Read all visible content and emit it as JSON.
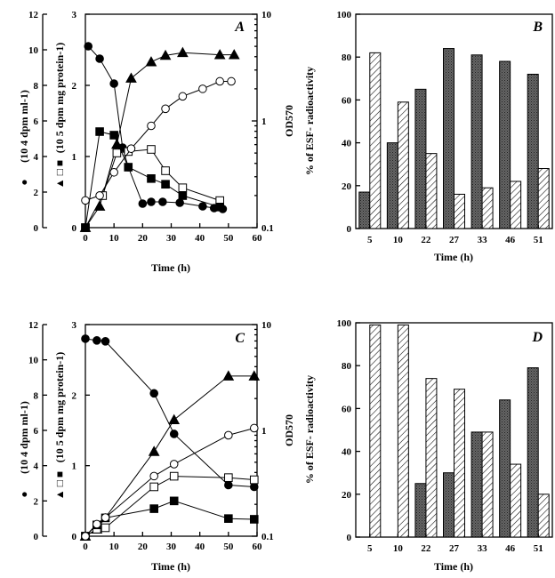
{
  "colors": {
    "ink": "#000000",
    "dark_bar": "#555555",
    "background": "#ffffff"
  },
  "chart_data": [
    {
      "id": "A",
      "type": "line",
      "panel_label": "A",
      "xlabel": "Time (h)",
      "xlim": [
        0,
        60
      ],
      "xticks": [
        "0",
        "10",
        "20",
        "30",
        "40",
        "50",
        "60"
      ],
      "axes": {
        "dpm": {
          "label": "(10 4 dpm ml-1)",
          "symbols": "●",
          "ylim": [
            0,
            12
          ],
          "ticks": [
            "0",
            "2",
            "4",
            "6",
            "8",
            "10",
            "12"
          ]
        },
        "spec": {
          "label": "(10 5 dpm mg protein-1)",
          "symbols": "▲ □ ■",
          "ylim": [
            0,
            3
          ],
          "ticks": [
            "0",
            "1",
            "2",
            "3"
          ]
        },
        "od": {
          "label": "OD570",
          "scale": "log",
          "ylim": [
            0.1,
            10
          ],
          "ticks": [
            "0.1",
            "1",
            "10"
          ]
        }
      },
      "series": [
        {
          "name": "filled circle",
          "marker": "circle",
          "filled": true,
          "axis": "dpm",
          "x": [
            1,
            5,
            10,
            13,
            15,
            20,
            23,
            27,
            33,
            41,
            45,
            48
          ],
          "y": [
            10.2,
            9.5,
            8.1,
            4.5,
            3.4,
            1.35,
            1.45,
            1.45,
            1.4,
            1.2,
            1.1,
            1.05
          ]
        },
        {
          "name": "filled triangle",
          "marker": "triangle",
          "filled": true,
          "axis": "spec",
          "x": [
            0,
            5,
            11,
            16,
            23,
            28,
            34,
            47,
            52
          ],
          "y": [
            0,
            0.3,
            1.17,
            2.1,
            2.33,
            2.42,
            2.46,
            2.43,
            2.43
          ]
        },
        {
          "name": "open square",
          "marker": "square",
          "filled": false,
          "axis": "spec",
          "x": [
            0,
            6,
            11,
            15,
            23,
            28,
            34,
            47
          ],
          "y": [
            0,
            0.45,
            1.05,
            1.07,
            1.1,
            0.8,
            0.56,
            0.38
          ]
        },
        {
          "name": "filled square",
          "marker": "square",
          "filled": true,
          "axis": "spec",
          "x": [
            0,
            5,
            10,
            15,
            23,
            28,
            34,
            47
          ],
          "y": [
            0,
            1.35,
            1.3,
            0.85,
            0.69,
            0.61,
            0.45,
            0.29
          ]
        },
        {
          "name": "open circle",
          "marker": "circle",
          "filled": false,
          "axis": "od",
          "x": [
            0,
            5,
            10,
            16,
            23,
            28,
            34,
            41,
            47,
            51
          ],
          "y": [
            0.18,
            0.2,
            0.33,
            0.55,
            0.9,
            1.3,
            1.7,
            2.0,
            2.35,
            2.35
          ]
        }
      ]
    },
    {
      "id": "B",
      "type": "bar",
      "panel_label": "B",
      "xlabel": "Time (h)",
      "ylabel": "% of ESF- radioactivity",
      "ylim": [
        0,
        100
      ],
      "yticks": [
        "0",
        "20",
        "40",
        "60",
        "80",
        "100"
      ],
      "categories": [
        "5",
        "10",
        "22",
        "27",
        "33",
        "46",
        "51"
      ],
      "series": [
        {
          "name": "dark",
          "pattern": "solid-dark",
          "values": [
            17,
            40,
            65,
            84,
            81,
            78,
            72
          ]
        },
        {
          "name": "hatched",
          "pattern": "hatched",
          "values": [
            82,
            59,
            35,
            16,
            19,
            22,
            28
          ]
        }
      ]
    },
    {
      "id": "C",
      "type": "line",
      "panel_label": "C",
      "xlabel": "Time (h)",
      "xlim": [
        0,
        60
      ],
      "xticks": [
        "0",
        "10",
        "20",
        "30",
        "40",
        "50",
        "60"
      ],
      "axes": {
        "dpm": {
          "label": "(10 4 dpm ml-1)",
          "symbols": "●",
          "ylim": [
            0,
            12
          ],
          "ticks": [
            "0",
            "2",
            "4",
            "6",
            "8",
            "10",
            "12"
          ]
        },
        "spec": {
          "label": "(10 5 dpm mg protein-1)",
          "symbols": "▲ □ ■",
          "ylim": [
            0,
            3
          ],
          "ticks": [
            "0",
            "1",
            "2",
            "3"
          ]
        },
        "od": {
          "label": "OD570",
          "scale": "log",
          "ylim": [
            0.1,
            10
          ],
          "ticks": [
            "0.1",
            "1",
            "10"
          ]
        }
      },
      "series": [
        {
          "name": "filled circle",
          "marker": "circle",
          "filled": true,
          "axis": "dpm",
          "x": [
            0,
            4,
            7,
            24,
            31,
            50,
            59
          ],
          "y": [
            11.2,
            11.1,
            11.05,
            8.1,
            5.8,
            2.9,
            2.8
          ]
        },
        {
          "name": "filled triangle",
          "marker": "triangle",
          "filled": true,
          "axis": "spec",
          "x": [
            0,
            4,
            24,
            31,
            50,
            59
          ],
          "y": [
            0,
            0.1,
            1.2,
            1.65,
            2.27,
            2.27
          ]
        },
        {
          "name": "open square",
          "marker": "square",
          "filled": false,
          "axis": "spec",
          "x": [
            0,
            4,
            7,
            24,
            31,
            50,
            59
          ],
          "y": [
            0,
            0.1,
            0.12,
            0.7,
            0.85,
            0.83,
            0.8
          ]
        },
        {
          "name": "filled square",
          "marker": "square",
          "filled": true,
          "axis": "spec",
          "x": [
            0,
            4,
            7,
            24,
            31,
            50,
            59
          ],
          "y": [
            0,
            0.16,
            0.26,
            0.39,
            0.5,
            0.25,
            0.24
          ]
        },
        {
          "name": "open circle",
          "marker": "circle",
          "filled": false,
          "axis": "od",
          "x": [
            0,
            4,
            7,
            24,
            31,
            50,
            59
          ],
          "y": [
            0.1,
            0.13,
            0.15,
            0.37,
            0.48,
            0.9,
            1.05
          ]
        }
      ]
    },
    {
      "id": "D",
      "type": "bar",
      "panel_label": "D",
      "xlabel": "Time (h)",
      "ylabel": "% of ESF- radioactivity",
      "ylim": [
        0,
        100
      ],
      "yticks": [
        "0",
        "20",
        "40",
        "60",
        "80",
        "100"
      ],
      "categories": [
        "5",
        "10",
        "22",
        "27",
        "33",
        "46",
        "51"
      ],
      "series": [
        {
          "name": "dark",
          "pattern": "solid-dark",
          "values": [
            0,
            0,
            25,
            30,
            49,
            64,
            79
          ]
        },
        {
          "name": "hatched",
          "pattern": "hatched",
          "values": [
            99,
            99,
            74,
            69,
            49,
            34,
            20
          ]
        }
      ]
    }
  ]
}
